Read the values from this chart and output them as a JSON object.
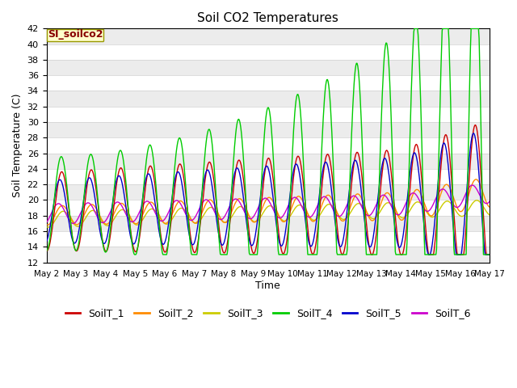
{
  "title": "Soil CO2 Temperatures",
  "xlabel": "Time",
  "ylabel": "Soil Temperature (C)",
  "ylim": [
    12,
    42
  ],
  "yticks": [
    12,
    14,
    16,
    18,
    20,
    22,
    24,
    26,
    28,
    30,
    32,
    34,
    36,
    38,
    40,
    42
  ],
  "xtick_labels": [
    "May 2",
    "May 3",
    "May 4",
    "May 5",
    "May 6",
    "May 7",
    "May 8",
    "May 9",
    "May 10",
    "May 11",
    "May 12",
    "May 13",
    "May 14",
    "May 15",
    "May 16",
    "May 17"
  ],
  "series_colors": {
    "SoilT_1": "#cc0000",
    "SoilT_2": "#ff8c00",
    "SoilT_3": "#cccc00",
    "SoilT_4": "#00cc00",
    "SoilT_5": "#0000cc",
    "SoilT_6": "#cc00cc"
  },
  "legend_label": "SI_soilco2",
  "legend_bg": "#ffffcc",
  "legend_edge": "#999900",
  "legend_text_color": "#880000",
  "bg_color": "#ffffff",
  "plot_bg_color": "#ffffff",
  "grid_color": "#e0e0e0",
  "n_days": 15,
  "pts_per_day": 48
}
